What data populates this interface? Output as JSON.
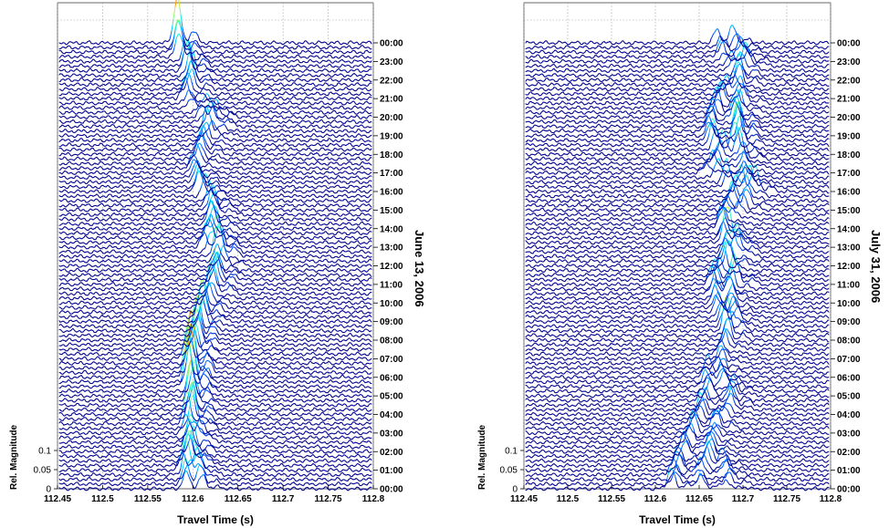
{
  "chart_data": [
    {
      "type": "line",
      "panel": "left",
      "title": "",
      "xlabel": "Travel Time (s)",
      "ylabel": "Rel. Magnitude",
      "side_label": "June 13, 2006",
      "xlim": [
        112.45,
        112.8
      ],
      "x_ticks": [
        "112.45",
        "112.5",
        "112.55",
        "112.6",
        "112.65",
        "112.7",
        "112.75",
        "112.8"
      ],
      "y_ticks": [
        "0",
        "0.05",
        "0.1"
      ],
      "hour_labels": [
        "00:00",
        "01:00",
        "02:00",
        "03:00",
        "04:00",
        "05:00",
        "06:00",
        "07:00",
        "08:00",
        "09:00",
        "10:00",
        "11:00",
        "12:00",
        "13:00",
        "14:00",
        "15:00",
        "16:00",
        "17:00",
        "18:00",
        "19:00",
        "20:00",
        "21:00",
        "22:00",
        "23:00",
        "00:00"
      ],
      "grid": true,
      "colormap": [
        "#00008f",
        "#0050ff",
        "#00dfff",
        "#70ff8f",
        "#ffdf00",
        "#ff5000",
        "#8f0000"
      ],
      "series": [
        {
          "hour": "00:00",
          "peaks": [
            [
              112.595,
              0.06
            ],
            [
              112.612,
              0.04
            ]
          ]
        },
        {
          "hour": "01:00",
          "peaks": [
            [
              112.59,
              0.08
            ],
            [
              112.605,
              0.05
            ]
          ]
        },
        {
          "hour": "02:00",
          "peaks": [
            [
              112.6,
              0.07
            ]
          ]
        },
        {
          "hour": "03:00",
          "peaks": [
            [
              112.595,
              0.06
            ],
            [
              112.61,
              0.04
            ]
          ]
        },
        {
          "hour": "04:00",
          "peaks": [
            [
              112.598,
              0.09
            ]
          ]
        },
        {
          "hour": "05:00",
          "peaks": [
            [
              112.6,
              0.1
            ]
          ]
        },
        {
          "hour": "06:00",
          "peaks": [
            [
              112.595,
              0.14
            ]
          ]
        },
        {
          "hour": "07:00",
          "peaks": [
            [
              112.598,
              0.15
            ]
          ]
        },
        {
          "hour": "08:00",
          "peaks": [
            [
              112.605,
              0.1
            ]
          ]
        },
        {
          "hour": "09:00",
          "peaks": [
            [
              112.61,
              0.08
            ]
          ]
        },
        {
          "hour": "10:00",
          "peaks": [
            [
              112.615,
              0.07
            ]
          ]
        },
        {
          "hour": "11:00",
          "peaks": [
            [
              112.625,
              0.08
            ]
          ]
        },
        {
          "hour": "12:00",
          "peaks": [
            [
              112.63,
              0.05
            ]
          ]
        },
        {
          "hour": "13:00",
          "peaks": [
            [
              112.615,
              0.05
            ],
            [
              112.628,
              0.06
            ]
          ]
        },
        {
          "hour": "14:00",
          "peaks": [
            [
              112.62,
              0.06
            ]
          ]
        },
        {
          "hour": "15:00",
          "peaks": [
            [
              112.625,
              0.06
            ]
          ]
        },
        {
          "hour": "16:00",
          "peaks": [
            [
              112.61,
              0.05
            ]
          ]
        },
        {
          "hour": "17:00",
          "peaks": [
            [
              112.6,
              0.05
            ]
          ]
        },
        {
          "hour": "18:00",
          "peaks": [
            [
              112.61,
              0.05
            ]
          ]
        },
        {
          "hour": "19:00",
          "peaks": [
            [
              112.62,
              0.06
            ]
          ]
        },
        {
          "hour": "20:00",
          "peaks": [
            [
              112.61,
              0.04
            ],
            [
              112.625,
              0.05
            ]
          ]
        },
        {
          "hour": "21:00",
          "peaks": [
            [
              112.595,
              0.05
            ]
          ]
        },
        {
          "hour": "22:00",
          "peaks": [
            [
              112.6,
              0.06
            ]
          ]
        },
        {
          "hour": "23:00",
          "peaks": [
            [
              112.59,
              0.08
            ]
          ]
        },
        {
          "hour": "00:00",
          "peaks": [
            [
              112.582,
              0.11
            ]
          ]
        }
      ]
    },
    {
      "type": "line",
      "panel": "right",
      "title": "",
      "xlabel": "Travel Time (s)",
      "ylabel": "Rel. Magnitude",
      "side_label": "July 31, 2006",
      "xlim": [
        112.45,
        112.8
      ],
      "x_ticks": [
        "112.45",
        "112.5",
        "112.55",
        "112.6",
        "112.65",
        "112.7",
        "112.75",
        "112.8"
      ],
      "y_ticks": [
        "0",
        "0.05",
        "0.1"
      ],
      "hour_labels": [
        "00:00",
        "01:00",
        "02:00",
        "03:00",
        "04:00",
        "05:00",
        "06:00",
        "07:00",
        "08:00",
        "09:00",
        "10:00",
        "11:00",
        "12:00",
        "13:00",
        "14:00",
        "15:00",
        "16:00",
        "17:00",
        "18:00",
        "19:00",
        "20:00",
        "21:00",
        "22:00",
        "23:00",
        "00:00"
      ],
      "grid": true,
      "colormap": [
        "#00008f",
        "#0050ff",
        "#00dfff",
        "#70ff8f",
        "#ffdf00",
        "#ff5000",
        "#8f0000"
      ],
      "series": [
        {
          "hour": "00:00",
          "peaks": [
            [
              112.62,
              0.05
            ],
            [
              112.65,
              0.04
            ],
            [
              112.68,
              0.03
            ]
          ]
        },
        {
          "hour": "01:00",
          "peaks": [
            [
              112.625,
              0.05
            ],
            [
              112.655,
              0.05
            ],
            [
              112.685,
              0.04
            ]
          ]
        },
        {
          "hour": "02:00",
          "peaks": [
            [
              112.635,
              0.05
            ],
            [
              112.665,
              0.05
            ]
          ]
        },
        {
          "hour": "03:00",
          "peaks": [
            [
              112.64,
              0.05
            ],
            [
              112.67,
              0.04
            ]
          ]
        },
        {
          "hour": "04:00",
          "peaks": [
            [
              112.65,
              0.05
            ],
            [
              112.68,
              0.05
            ]
          ]
        },
        {
          "hour": "05:00",
          "peaks": [
            [
              112.66,
              0.04
            ],
            [
              112.69,
              0.04
            ]
          ]
        },
        {
          "hour": "06:00",
          "peaks": [
            [
              112.66,
              0.04
            ],
            [
              112.675,
              0.04
            ]
          ]
        },
        {
          "hour": "07:00",
          "peaks": [
            [
              112.675,
              0.05
            ]
          ]
        },
        {
          "hour": "08:00",
          "peaks": [
            [
              112.68,
              0.05
            ]
          ]
        },
        {
          "hour": "09:00",
          "peaks": [
            [
              112.68,
              0.05
            ],
            [
              112.69,
              0.04
            ]
          ]
        },
        {
          "hour": "10:00",
          "peaks": [
            [
              112.67,
              0.05
            ],
            [
              112.685,
              0.05
            ]
          ]
        },
        {
          "hour": "11:00",
          "peaks": [
            [
              112.665,
              0.05
            ],
            [
              112.69,
              0.06
            ]
          ]
        },
        {
          "hour": "12:00",
          "peaks": [
            [
              112.685,
              0.06
            ]
          ]
        },
        {
          "hour": "13:00",
          "peaks": [
            [
              112.68,
              0.05
            ],
            [
              112.69,
              0.06
            ]
          ]
        },
        {
          "hour": "14:00",
          "peaks": [
            [
              112.675,
              0.05
            ]
          ]
        },
        {
          "hour": "15:00",
          "peaks": [
            [
              112.68,
              0.05
            ],
            [
              112.7,
              0.04
            ]
          ]
        },
        {
          "hour": "16:00",
          "peaks": [
            [
              112.695,
              0.06
            ],
            [
              112.71,
              0.05
            ]
          ]
        },
        {
          "hour": "17:00",
          "peaks": [
            [
              112.66,
              0.04
            ],
            [
              112.7,
              0.04
            ]
          ]
        },
        {
          "hour": "18:00",
          "peaks": [
            [
              112.675,
              0.06
            ],
            [
              112.695,
              0.05
            ]
          ]
        },
        {
          "hour": "19:00",
          "peaks": [
            [
              112.66,
              0.06
            ],
            [
              112.695,
              0.08
            ]
          ]
        },
        {
          "hour": "20:00",
          "peaks": [
            [
              112.665,
              0.05
            ],
            [
              112.69,
              0.06
            ]
          ]
        },
        {
          "hour": "21:00",
          "peaks": [
            [
              112.68,
              0.05
            ],
            [
              112.7,
              0.05
            ]
          ]
        },
        {
          "hour": "22:00",
          "peaks": [
            [
              112.695,
              0.06
            ]
          ]
        },
        {
          "hour": "23:00",
          "peaks": [
            [
              112.68,
              0.04
            ],
            [
              112.705,
              0.05
            ]
          ]
        },
        {
          "hour": "00:00",
          "peaks": [
            [
              112.67,
              0.04
            ],
            [
              112.69,
              0.04
            ]
          ]
        }
      ]
    }
  ]
}
